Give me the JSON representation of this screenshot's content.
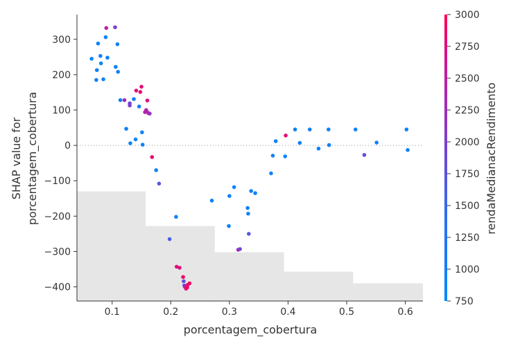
{
  "chart_data": {
    "type": "scatter",
    "xlabel": "porcentagem_cobertura",
    "ylabel_lines": [
      "SHAP value for",
      "porcentagem_cobertura"
    ],
    "xlim": [
      0.04,
      0.63
    ],
    "ylim": [
      -440,
      370
    ],
    "xticks": [
      0.1,
      0.2,
      0.3,
      0.4,
      0.5,
      0.6
    ],
    "xtick_labels": [
      "0.1",
      "0.2",
      "0.3",
      "0.4",
      "0.5",
      "0.6"
    ],
    "yticks": [
      300,
      200,
      100,
      0,
      -100,
      -200,
      -300,
      -400
    ],
    "ytick_labels": [
      "300",
      "200",
      "100",
      "0",
      "−100",
      "−200",
      "−300",
      "−400"
    ],
    "zero_line": true,
    "histogram_background": {
      "color": "#e6e6e6",
      "bins": [
        {
          "x0": 0.04,
          "x1": 0.157,
          "top": -130
        },
        {
          "x0": 0.157,
          "x1": 0.275,
          "top": -228
        },
        {
          "x0": 0.275,
          "x1": 0.393,
          "top": -302
        },
        {
          "x0": 0.393,
          "x1": 0.511,
          "top": -357
        },
        {
          "x0": 0.511,
          "x1": 0.63,
          "top": -390
        }
      ]
    },
    "colorbar": {
      "label": "rendaMedianacRendimento",
      "min": 750,
      "max": 3000,
      "ticks": [
        3000,
        2750,
        2500,
        2250,
        2000,
        1750,
        1500,
        1250,
        1000,
        750
      ],
      "tick_labels": [
        "3000",
        "2750",
        "2500",
        "2250",
        "2000",
        "1750",
        "1500",
        "1250",
        "1000",
        "750"
      ],
      "low_color": "#008afb",
      "high_color": "#ff0052"
    },
    "points": [
      {
        "x": 0.065,
        "y": 245,
        "c": 900
      },
      {
        "x": 0.073,
        "y": 185,
        "c": 900
      },
      {
        "x": 0.074,
        "y": 213,
        "c": 950
      },
      {
        "x": 0.076,
        "y": 288,
        "c": 900
      },
      {
        "x": 0.08,
        "y": 253,
        "c": 950
      },
      {
        "x": 0.081,
        "y": 232,
        "c": 900
      },
      {
        "x": 0.085,
        "y": 187,
        "c": 950
      },
      {
        "x": 0.089,
        "y": 306,
        "c": 950
      },
      {
        "x": 0.09,
        "y": 332,
        "c": 2500
      },
      {
        "x": 0.092,
        "y": 248,
        "c": 950
      },
      {
        "x": 0.105,
        "y": 334,
        "c": 2000
      },
      {
        "x": 0.106,
        "y": 222,
        "c": 900
      },
      {
        "x": 0.109,
        "y": 286,
        "c": 950
      },
      {
        "x": 0.11,
        "y": 208,
        "c": 950
      },
      {
        "x": 0.114,
        "y": 128,
        "c": 950
      },
      {
        "x": 0.121,
        "y": 128,
        "c": 2300
      },
      {
        "x": 0.124,
        "y": 47,
        "c": 950
      },
      {
        "x": 0.13,
        "y": 119,
        "c": 1900
      },
      {
        "x": 0.13,
        "y": 113,
        "c": 2000
      },
      {
        "x": 0.131,
        "y": 6,
        "c": 950
      },
      {
        "x": 0.137,
        "y": 131,
        "c": 950
      },
      {
        "x": 0.14,
        "y": 17,
        "c": 950
      },
      {
        "x": 0.141,
        "y": 155,
        "c": 2800
      },
      {
        "x": 0.146,
        "y": 110,
        "c": 1000
      },
      {
        "x": 0.148,
        "y": 151,
        "c": 2800
      },
      {
        "x": 0.15,
        "y": 166,
        "c": 2800
      },
      {
        "x": 0.151,
        "y": 37,
        "c": 950
      },
      {
        "x": 0.152,
        "y": 2,
        "c": 950
      },
      {
        "x": 0.156,
        "y": 94,
        "c": 2400
      },
      {
        "x": 0.158,
        "y": 100,
        "c": 2300
      },
      {
        "x": 0.159,
        "y": 96,
        "c": 2500
      },
      {
        "x": 0.16,
        "y": 127,
        "c": 2700
      },
      {
        "x": 0.162,
        "y": 91,
        "c": 2300
      },
      {
        "x": 0.164,
        "y": 90,
        "c": 2200
      },
      {
        "x": 0.168,
        "y": -33,
        "c": 2800
      },
      {
        "x": 0.175,
        "y": -70,
        "c": 950
      },
      {
        "x": 0.18,
        "y": -108,
        "c": 1700
      },
      {
        "x": 0.198,
        "y": -265,
        "c": 1600
      },
      {
        "x": 0.209,
        "y": -202,
        "c": 950
      },
      {
        "x": 0.21,
        "y": -343,
        "c": 2800
      },
      {
        "x": 0.215,
        "y": -346,
        "c": 2700
      },
      {
        "x": 0.221,
        "y": -372,
        "c": 2900
      },
      {
        "x": 0.222,
        "y": -384,
        "c": 1800
      },
      {
        "x": 0.223,
        "y": -396,
        "c": 1700
      },
      {
        "x": 0.224,
        "y": -400,
        "c": 2600
      },
      {
        "x": 0.225,
        "y": -398,
        "c": 2400
      },
      {
        "x": 0.226,
        "y": -405,
        "c": 2700
      },
      {
        "x": 0.228,
        "y": -402,
        "c": 2900
      },
      {
        "x": 0.229,
        "y": -394,
        "c": 2800
      },
      {
        "x": 0.232,
        "y": -390,
        "c": 2900
      },
      {
        "x": 0.27,
        "y": -156,
        "c": 950
      },
      {
        "x": 0.299,
        "y": -228,
        "c": 950
      },
      {
        "x": 0.3,
        "y": -143,
        "c": 950
      },
      {
        "x": 0.308,
        "y": -118,
        "c": 950
      },
      {
        "x": 0.315,
        "y": -295,
        "c": 2300
      },
      {
        "x": 0.318,
        "y": -293,
        "c": 1900
      },
      {
        "x": 0.331,
        "y": -177,
        "c": 950
      },
      {
        "x": 0.332,
        "y": -193,
        "c": 950
      },
      {
        "x": 0.333,
        "y": -250,
        "c": 1700
      },
      {
        "x": 0.337,
        "y": -129,
        "c": 950
      },
      {
        "x": 0.344,
        "y": -135,
        "c": 950
      },
      {
        "x": 0.371,
        "y": -79,
        "c": 950
      },
      {
        "x": 0.374,
        "y": -29,
        "c": 950
      },
      {
        "x": 0.379,
        "y": 12,
        "c": 950
      },
      {
        "x": 0.395,
        "y": -31,
        "c": 950
      },
      {
        "x": 0.396,
        "y": 28,
        "c": 2800
      },
      {
        "x": 0.412,
        "y": 45,
        "c": 950
      },
      {
        "x": 0.42,
        "y": 7,
        "c": 950
      },
      {
        "x": 0.437,
        "y": 45,
        "c": 950
      },
      {
        "x": 0.452,
        "y": -9,
        "c": 950
      },
      {
        "x": 0.469,
        "y": 45,
        "c": 950
      },
      {
        "x": 0.47,
        "y": 1,
        "c": 950
      },
      {
        "x": 0.515,
        "y": 45,
        "c": 950
      },
      {
        "x": 0.53,
        "y": -27,
        "c": 1800
      },
      {
        "x": 0.551,
        "y": 8,
        "c": 950
      },
      {
        "x": 0.602,
        "y": 45,
        "c": 950
      },
      {
        "x": 0.604,
        "y": -13,
        "c": 950
      }
    ]
  }
}
